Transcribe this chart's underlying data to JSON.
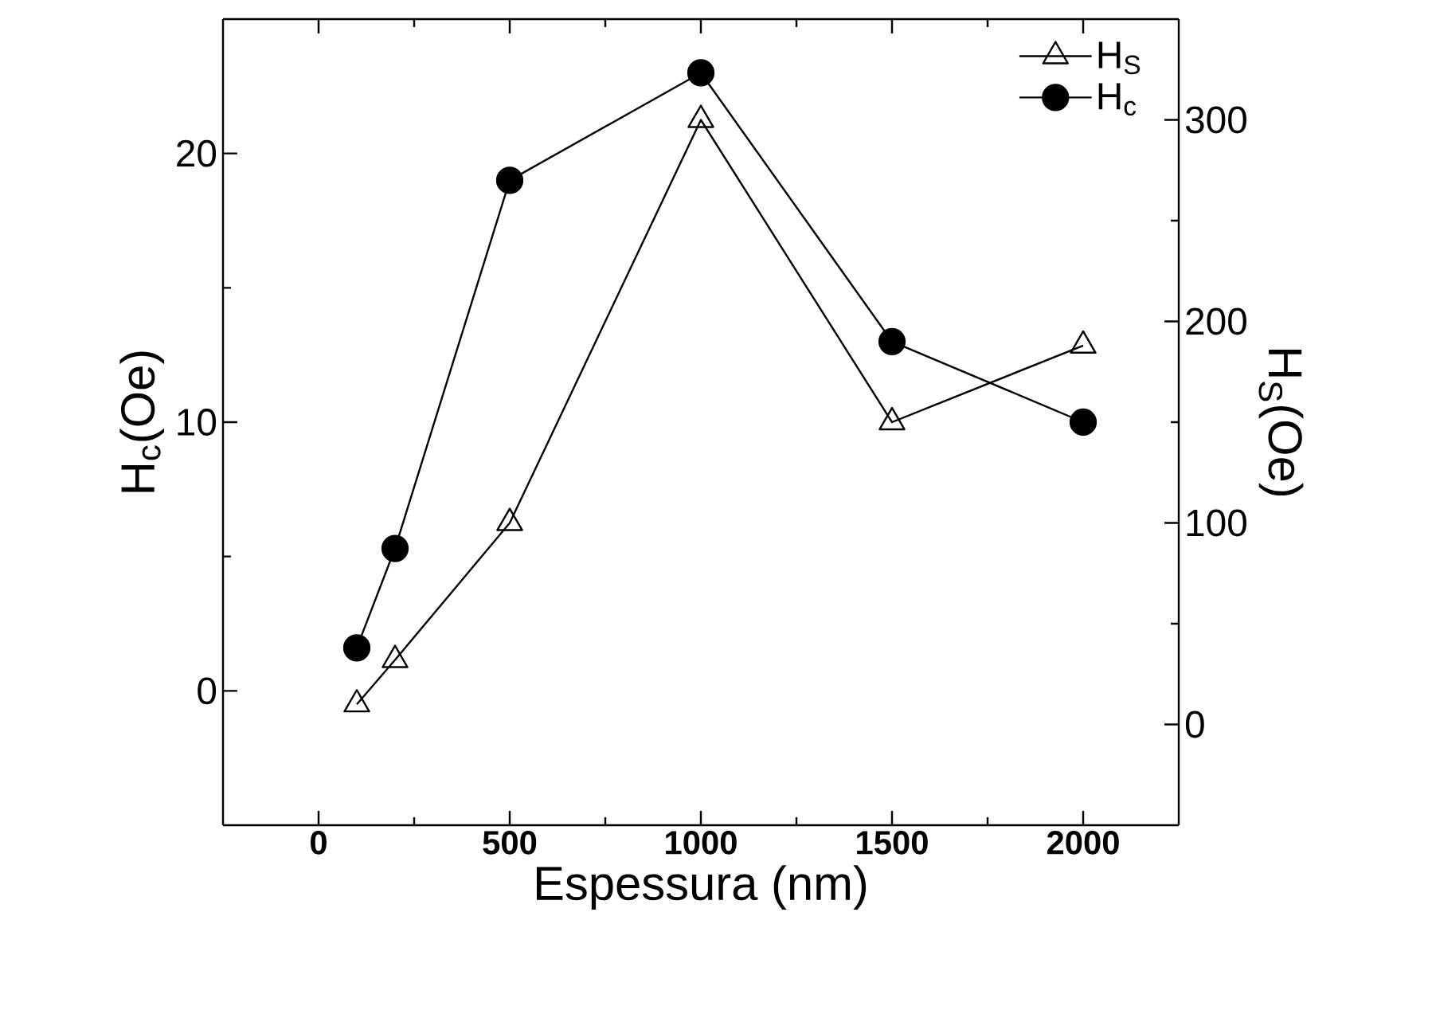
{
  "chart_data": {
    "type": "line",
    "xlabel": "Espessura (nm)",
    "ylabel": "H$_{c}$(Oe)",
    "y2label": "H$_{S}$(Oe)",
    "x": [
      100,
      200,
      500,
      1000,
      1500,
      2000
    ],
    "series": [
      {
        "name": "H$_{S}$",
        "color": "#000000",
        "axis": "y2",
        "marker": "triangle",
        "values": [
          10,
          32,
          100,
          300,
          150,
          188
        ]
      },
      {
        "name": "H$_{c}$",
        "color": "#000000",
        "marker": "circle",
        "values": [
          1.6,
          5.3,
          19,
          23,
          13,
          10
        ]
      }
    ],
    "xlim": [
      -250,
      2250
    ],
    "xticks": [
      0,
      500,
      1000,
      1500,
      2000
    ],
    "ylim": [
      -5,
      25
    ],
    "yticks": [
      0,
      10,
      20
    ],
    "y2lim": [
      -50,
      350
    ],
    "y2ticks": [
      0,
      100,
      200,
      300
    ],
    "legend": "top right",
    "grid": false,
    "line_style": "solid"
  }
}
